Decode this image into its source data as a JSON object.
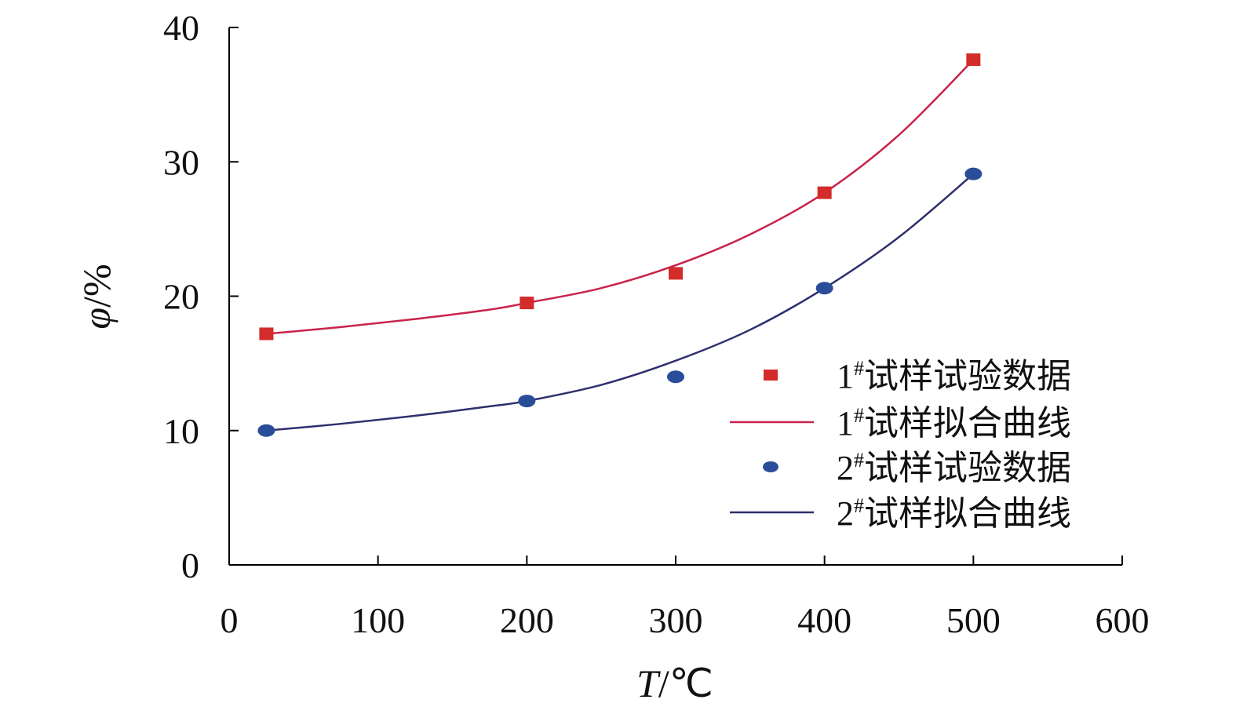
{
  "chart_data": {
    "type": "scatter",
    "xlabel_var": "T",
    "xlabel_unit": "/℃",
    "ylabel_var": "φ",
    "ylabel_unit": "/%",
    "xlim": [
      0,
      600
    ],
    "ylim": [
      0,
      40
    ],
    "x_ticks": [
      "0",
      "100",
      "200",
      "300",
      "400",
      "500",
      "600"
    ],
    "y_ticks": [
      "0",
      "10",
      "20",
      "30",
      "40"
    ],
    "grid": false,
    "legend_position": "right",
    "series": [
      {
        "name_num": "1",
        "name_sup": "#",
        "name_text": "试样试验数据",
        "kind": "points",
        "marker": "square",
        "color": "#d42b2b",
        "x": [
          25,
          200,
          300,
          400,
          500
        ],
        "y": [
          17.2,
          19.5,
          21.7,
          27.7,
          37.6
        ]
      },
      {
        "name_num": "1",
        "name_sup": "#",
        "name_text": "试样拟合曲线",
        "kind": "line",
        "color": "#c8234a",
        "x": [
          25,
          75,
          125,
          175,
          200,
          250,
          300,
          350,
          400,
          450,
          500
        ],
        "y": [
          17.2,
          17.7,
          18.3,
          19.0,
          19.5,
          20.6,
          22.3,
          24.6,
          27.7,
          32.0,
          37.6
        ]
      },
      {
        "name_num": "2",
        "name_sup": "#",
        "name_text": "试样试验数据",
        "kind": "points",
        "marker": "circle",
        "color": "#2a4d9a",
        "x": [
          25,
          200,
          300,
          400,
          500
        ],
        "y": [
          10.0,
          12.2,
          14.0,
          20.6,
          29.1
        ]
      },
      {
        "name_num": "2",
        "name_sup": "#",
        "name_text": "试样拟合曲线",
        "kind": "line",
        "color": "#2e2f6e",
        "x": [
          25,
          75,
          125,
          175,
          200,
          250,
          300,
          350,
          400,
          450,
          500
        ],
        "y": [
          10.0,
          10.5,
          11.1,
          11.8,
          12.2,
          13.4,
          15.2,
          17.5,
          20.6,
          24.4,
          29.1
        ]
      }
    ]
  }
}
